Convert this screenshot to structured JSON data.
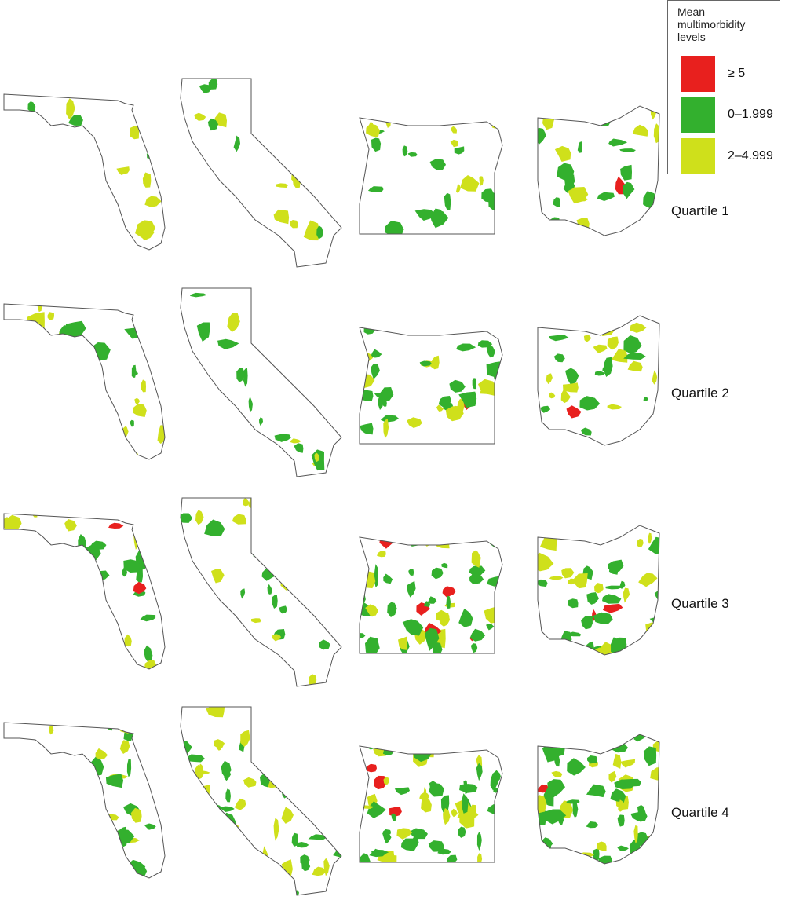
{
  "legend": {
    "title": "Mean multimorbidity levels",
    "items": [
      {
        "label": "≥ 5",
        "color": "#e8201e"
      },
      {
        "label": "0–1.999",
        "color": "#33b02e"
      },
      {
        "label": "2–4.999",
        "color": "#cfe01b"
      }
    ]
  },
  "rows": [
    {
      "label": "Quartile 1"
    },
    {
      "label": "Quartile 2"
    },
    {
      "label": "Quartile 3"
    },
    {
      "label": "Quartile 4"
    }
  ]
}
